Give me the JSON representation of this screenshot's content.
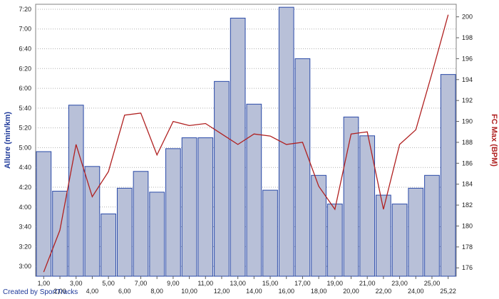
{
  "footer": {
    "credit": "Created by SportTracks"
  },
  "chart_data": {
    "type": "bar",
    "x": [
      "1,00",
      "2,00",
      "3,00",
      "4,00",
      "5,00",
      "6,00",
      "7,00",
      "8,00",
      "9,00",
      "10,00",
      "11,00",
      "12,00",
      "13,00",
      "14,00",
      "15,00",
      "16,00",
      "17,00",
      "18,00",
      "19,00",
      "20,00",
      "21,00",
      "22,00",
      "23,00",
      "24,00",
      "25,00",
      "25,22"
    ],
    "x_tick_labels": [
      "1,00",
      "2,00",
      "3,00",
      "4,00",
      "5,00",
      "6,00",
      "7,00",
      "8,00",
      "9,00",
      "10,00",
      "11,00",
      "12,00",
      "13,00",
      "14,00",
      "15,00",
      "16,00",
      "17,00",
      "18,00",
      "19,00",
      "20,00",
      "21,00",
      "22,00",
      "23,00",
      "24,00",
      "25,00",
      "25,22"
    ],
    "y_left_label": "Allure (min/km)",
    "y_left_ticks": [
      "3:00",
      "3:20",
      "3:40",
      "4:00",
      "4:20",
      "4:40",
      "5:00",
      "5:20",
      "5:40",
      "6:00",
      "6:20",
      "6:40",
      "7:00",
      "7:20"
    ],
    "y_left_range_sec": [
      170,
      445
    ],
    "y_right_label": "FC Max (BPM)",
    "y_right_ticks": [
      176,
      178,
      180,
      182,
      184,
      186,
      188,
      190,
      192,
      194,
      196,
      198,
      200
    ],
    "y_right_range": [
      175.2,
      201.2
    ],
    "bar_series": {
      "name": "Allure",
      "color": "#b8c0d8",
      "edge": "#2a4aa8",
      "values_sec": [
        296,
        256,
        343,
        281,
        233,
        259,
        276,
        255,
        299,
        310,
        310,
        367,
        431,
        344,
        257,
        442,
        390,
        272,
        243,
        331,
        312,
        252,
        243,
        259,
        272,
        374
      ]
    },
    "line_series": {
      "name": "FC Max",
      "color": "#b02020",
      "values": [
        175.6,
        179.6,
        187.8,
        182.8,
        185.2,
        190.6,
        190.8,
        186.8,
        190.0,
        189.6,
        189.8,
        188.8,
        187.8,
        188.8,
        188.6,
        187.8,
        188.0,
        183.8,
        181.6,
        188.8,
        189.0,
        181.6,
        187.8,
        189.2,
        194.6,
        200.2
      ]
    },
    "grid": true
  }
}
